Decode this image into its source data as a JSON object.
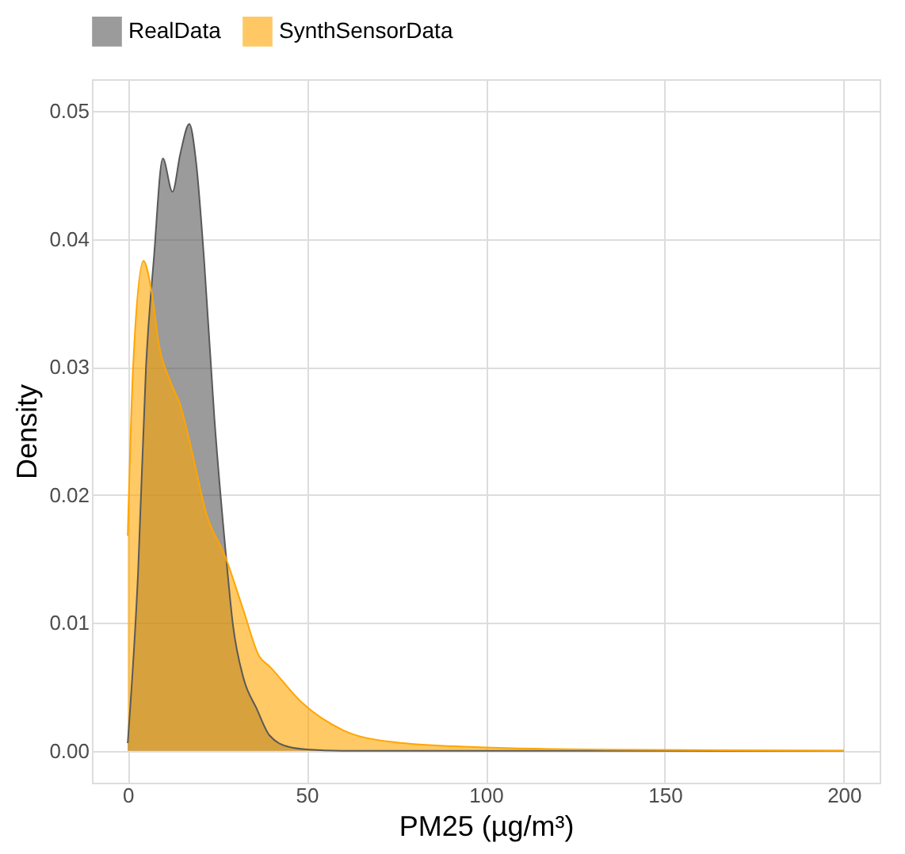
{
  "chart_data": {
    "type": "area",
    "xlabel": "PM25 (µg/m³)",
    "ylabel": "Density",
    "legend": "top",
    "grid": true,
    "xlim": [
      -10,
      210
    ],
    "xticks": [
      0,
      50,
      100,
      150,
      200
    ],
    "ylim": [
      -0.0025,
      0.0525
    ],
    "yticks": [
      {
        "value": 0,
        "label": "0.00"
      },
      {
        "value": 0.01,
        "label": "0.01"
      },
      {
        "value": 0.02,
        "label": "0.02"
      },
      {
        "value": 0.03,
        "label": "0.03"
      },
      {
        "value": 0.04,
        "label": "0.04"
      },
      {
        "value": 0.05,
        "label": "0.05"
      }
    ],
    "series": [
      {
        "name": "RealData",
        "color": "#595959",
        "x": [
          0,
          2.9,
          5.1,
          7.3,
          9.8,
          12.5,
          14.7,
          17.2,
          19.1,
          21.3,
          24.2,
          27.2,
          29.4,
          32.3,
          36,
          39.6,
          45,
          50,
          60,
          200
        ],
        "values": [
          0.0006,
          0.014,
          0.03,
          0.0385,
          0.0463,
          0.0437,
          0.0467,
          0.049,
          0.046,
          0.0385,
          0.026,
          0.016,
          0.0098,
          0.0057,
          0.0033,
          0.0012,
          0.0003,
          0.0001,
          0,
          0
        ]
      },
      {
        "name": "SynthSensorData",
        "color": "#ffa500",
        "x": [
          0,
          1.5,
          4.4,
          6.6,
          8.8,
          11.7,
          14.7,
          17.6,
          22,
          27.2,
          32.3,
          36.7,
          39.6,
          48.5,
          60.2,
          73.4,
          95.5,
          128,
          200
        ],
        "values": [
          0.0168,
          0.03,
          0.0383,
          0.036,
          0.0316,
          0.029,
          0.027,
          0.0238,
          0.0185,
          0.0152,
          0.011,
          0.0074,
          0.0066,
          0.0038,
          0.0016,
          0.0007,
          0.0003,
          0.0001,
          0
        ]
      }
    ]
  }
}
